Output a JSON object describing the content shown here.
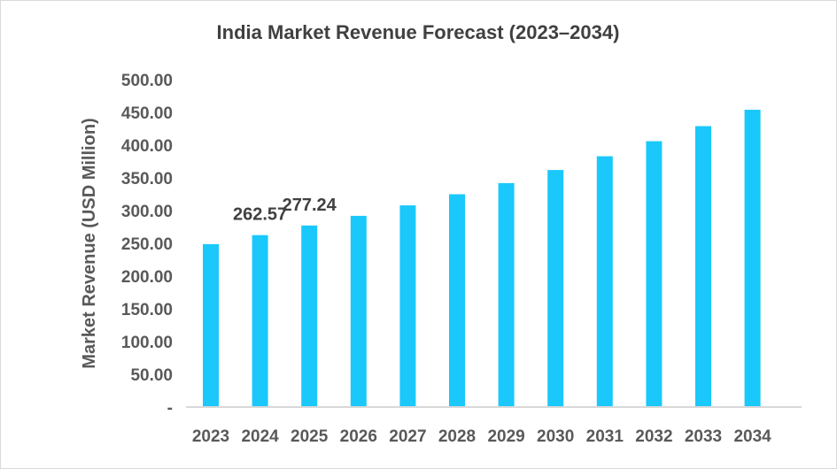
{
  "chart_data": {
    "type": "bar",
    "title": "India Market Revenue Forecast (2023–2034)",
    "xlabel": "",
    "ylabel": "Market Revenue (USD Million)",
    "categories": [
      "2023",
      "2024",
      "2025",
      "2026",
      "2027",
      "2028",
      "2029",
      "2030",
      "2031",
      "2032",
      "2033",
      "2034"
    ],
    "values": [
      248.8,
      262.57,
      277.24,
      292.0,
      308.0,
      325.0,
      342.0,
      362.0,
      383.0,
      406.0,
      429.0,
      454.0
    ],
    "data_labels": {
      "1": "262.57",
      "2": "277.24"
    },
    "ylim": [
      0,
      500
    ],
    "yticks": [
      "-",
      "50.00",
      "100.00",
      "150.00",
      "200.00",
      "250.00",
      "300.00",
      "350.00",
      "400.00",
      "450.00",
      "500.00"
    ],
    "grid": false,
    "legend": "none",
    "bar_color": "#1AC8FB"
  }
}
